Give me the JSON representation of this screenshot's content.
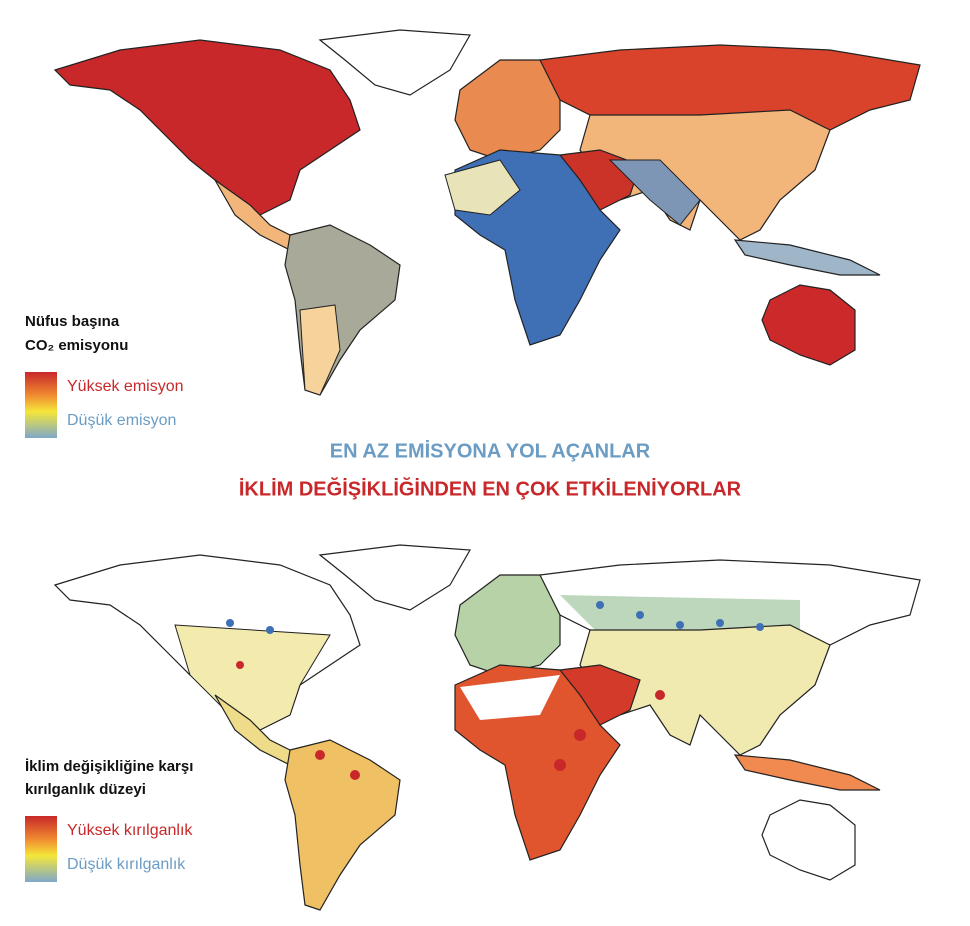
{
  "maps": [
    {
      "legend_title": [
        "Nüfus başına",
        "CO₂ emisyonu"
      ],
      "legend_high": "Yüksek emisyon",
      "legend_low": "Düşük emisyon"
    },
    {
      "legend_title": [
        "İklim değişikliğine karşı",
        "kırılganlık düzeyi"
      ],
      "legend_high": "Yüksek kırılganlık",
      "legend_low": "Düşük kırılganlık"
    }
  ],
  "headline": {
    "line1": "EN AZ EMİSYONA YOL AÇANLAR",
    "line2": "İKLİM DEĞİŞİKLİĞİNDEN EN ÇOK ETKİLENİYORLAR"
  }
}
